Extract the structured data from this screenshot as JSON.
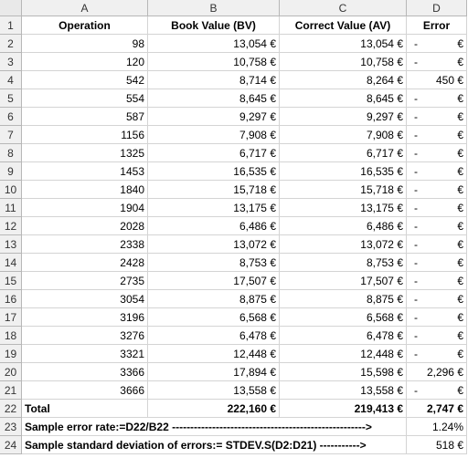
{
  "columns": [
    "A",
    "B",
    "C",
    "D"
  ],
  "headers": {
    "row": "1",
    "operation": "Operation",
    "book_value": "Book Value (BV)",
    "correct_value": "Correct Value (AV)",
    "error": "Error"
  },
  "rows": [
    {
      "num": "2",
      "op": "98",
      "bv": "13,054 €",
      "av": "13,054 €",
      "err_value": "-",
      "err_symbol": "€"
    },
    {
      "num": "3",
      "op": "120",
      "bv": "10,758 €",
      "av": "10,758 €",
      "err_value": "-",
      "err_symbol": "€"
    },
    {
      "num": "4",
      "op": "542",
      "bv": "8,714 €",
      "av": "8,264 €",
      "err_value": "450 €",
      "err_symbol": ""
    },
    {
      "num": "5",
      "op": "554",
      "bv": "8,645 €",
      "av": "8,645 €",
      "err_value": "-",
      "err_symbol": "€"
    },
    {
      "num": "6",
      "op": "587",
      "bv": "9,297 €",
      "av": "9,297 €",
      "err_value": "-",
      "err_symbol": "€"
    },
    {
      "num": "7",
      "op": "1156",
      "bv": "7,908 €",
      "av": "7,908 €",
      "err_value": "-",
      "err_symbol": "€"
    },
    {
      "num": "8",
      "op": "1325",
      "bv": "6,717 €",
      "av": "6,717 €",
      "err_value": "-",
      "err_symbol": "€"
    },
    {
      "num": "9",
      "op": "1453",
      "bv": "16,535 €",
      "av": "16,535 €",
      "err_value": "-",
      "err_symbol": "€"
    },
    {
      "num": "10",
      "op": "1840",
      "bv": "15,718 €",
      "av": "15,718 €",
      "err_value": "-",
      "err_symbol": "€"
    },
    {
      "num": "11",
      "op": "1904",
      "bv": "13,175 €",
      "av": "13,175 €",
      "err_value": "-",
      "err_symbol": "€"
    },
    {
      "num": "12",
      "op": "2028",
      "bv": "6,486 €",
      "av": "6,486 €",
      "err_value": "-",
      "err_symbol": "€"
    },
    {
      "num": "13",
      "op": "2338",
      "bv": "13,072 €",
      "av": "13,072 €",
      "err_value": "-",
      "err_symbol": "€"
    },
    {
      "num": "14",
      "op": "2428",
      "bv": "8,753 €",
      "av": "8,753 €",
      "err_value": "-",
      "err_symbol": "€"
    },
    {
      "num": "15",
      "op": "2735",
      "bv": "17,507 €",
      "av": "17,507 €",
      "err_value": "-",
      "err_symbol": "€"
    },
    {
      "num": "16",
      "op": "3054",
      "bv": "8,875 €",
      "av": "8,875 €",
      "err_value": "-",
      "err_symbol": "€"
    },
    {
      "num": "17",
      "op": "3196",
      "bv": "6,568 €",
      "av": "6,568 €",
      "err_value": "-",
      "err_symbol": "€"
    },
    {
      "num": "18",
      "op": "3276",
      "bv": "6,478 €",
      "av": "6,478 €",
      "err_value": "-",
      "err_symbol": "€"
    },
    {
      "num": "19",
      "op": "3321",
      "bv": "12,448 €",
      "av": "12,448 €",
      "err_value": "-",
      "err_symbol": "€"
    },
    {
      "num": "20",
      "op": "3366",
      "bv": "17,894 €",
      "av": "15,598 €",
      "err_value": "2,296 €",
      "err_symbol": ""
    },
    {
      "num": "21",
      "op": "3666",
      "bv": "13,558 €",
      "av": "13,558 €",
      "err_value": "-",
      "err_symbol": "€"
    }
  ],
  "total": {
    "num": "22",
    "label": "Total",
    "bv": "222,160 €",
    "av": "219,413 €",
    "err": "2,747 €"
  },
  "sample_rate": {
    "num": "23",
    "label": "Sample error rate:=D22/B22 -----------------------------------------------------> ",
    "value": "1.24%"
  },
  "sample_std": {
    "num": "24",
    "label": "Sample standard deviation of errors:= STDEV.S(D2:D21) -----------> ",
    "value": "518 €"
  }
}
